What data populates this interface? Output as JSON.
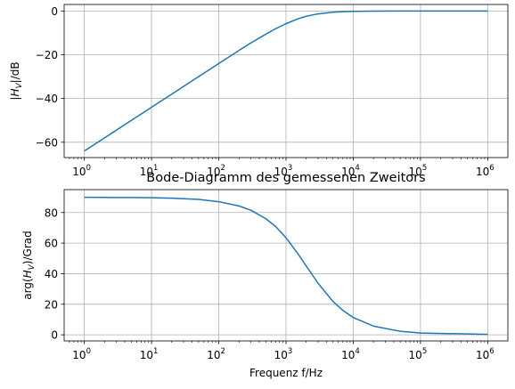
{
  "chart_data": [
    {
      "type": "line",
      "title": "",
      "xlabel": "",
      "ylabel_parts": [
        "|",
        "H",
        "V",
        "|/dB"
      ],
      "x_scale": "log",
      "xlim": [
        0.6,
        1.7
      ],
      "ylim": [
        -67,
        3
      ],
      "grid": true,
      "x_ticks": [
        {
          "value": 1,
          "base": "10",
          "exp": "0"
        },
        {
          "value": 10,
          "base": "10",
          "exp": "1"
        },
        {
          "value": 100,
          "base": "10",
          "exp": "2"
        },
        {
          "value": 1000,
          "base": "10",
          "exp": "3"
        },
        {
          "value": 10000,
          "base": "10",
          "exp": "4"
        },
        {
          "value": 100000,
          "base": "10",
          "exp": "5"
        },
        {
          "value": 1000000,
          "base": "10",
          "exp": "6"
        }
      ],
      "y_ticks": [
        {
          "value": 0,
          "label": "0"
        },
        {
          "value": -20,
          "label": "−20"
        },
        {
          "value": -40,
          "label": "−40"
        },
        {
          "value": -60,
          "label": "−60"
        }
      ],
      "series": [
        {
          "color": "#1f77b4",
          "x": [
            1,
            2,
            5,
            10,
            20,
            50,
            100,
            200,
            300,
            500,
            700,
            1000,
            1500,
            2000,
            3000,
            5000,
            7000,
            10000,
            20000,
            50000,
            100000,
            1000000
          ],
          "y": [
            -64,
            -58,
            -50,
            -44,
            -38,
            -30,
            -24,
            -18,
            -14.6,
            -10.6,
            -8.1,
            -5.8,
            -3.6,
            -2.4,
            -1.3,
            -0.55,
            -0.3,
            -0.15,
            -0.04,
            -0.01,
            0,
            0
          ]
        }
      ]
    },
    {
      "type": "line",
      "title": "Bode-Diagramm des gemessenen Zweitors",
      "xlabel": "Frequenz f/Hz",
      "ylabel_parts": [
        "arg(",
        "H",
        "V",
        ")/Grad"
      ],
      "x_scale": "log",
      "xlim": [
        0.6,
        1.7
      ],
      "ylim": [
        -4,
        95
      ],
      "grid": true,
      "x_ticks": [
        {
          "value": 1,
          "base": "10",
          "exp": "0"
        },
        {
          "value": 10,
          "base": "10",
          "exp": "1"
        },
        {
          "value": 100,
          "base": "10",
          "exp": "2"
        },
        {
          "value": 1000,
          "base": "10",
          "exp": "3"
        },
        {
          "value": 10000,
          "base": "10",
          "exp": "4"
        },
        {
          "value": 100000,
          "base": "10",
          "exp": "5"
        },
        {
          "value": 1000000,
          "base": "10",
          "exp": "6"
        }
      ],
      "y_ticks": [
        {
          "value": 0,
          "label": "0"
        },
        {
          "value": 20,
          "label": "20"
        },
        {
          "value": 40,
          "label": "40"
        },
        {
          "value": 60,
          "label": "60"
        },
        {
          "value": 80,
          "label": "80"
        }
      ],
      "series": [
        {
          "color": "#1f77b4",
          "x": [
            1,
            2,
            5,
            10,
            20,
            50,
            100,
            200,
            300,
            500,
            700,
            1000,
            1500,
            2000,
            3000,
            5000,
            7000,
            10000,
            20000,
            50000,
            100000,
            1000000
          ],
          "y": [
            90,
            89.9,
            89.8,
            89.7,
            89.4,
            88.6,
            87.1,
            84.3,
            81.5,
            76.0,
            70.9,
            63.5,
            53.1,
            45.0,
            33.7,
            21.8,
            16.0,
            11.3,
            5.7,
            2.3,
            1.2,
            0.3
          ]
        }
      ]
    }
  ]
}
